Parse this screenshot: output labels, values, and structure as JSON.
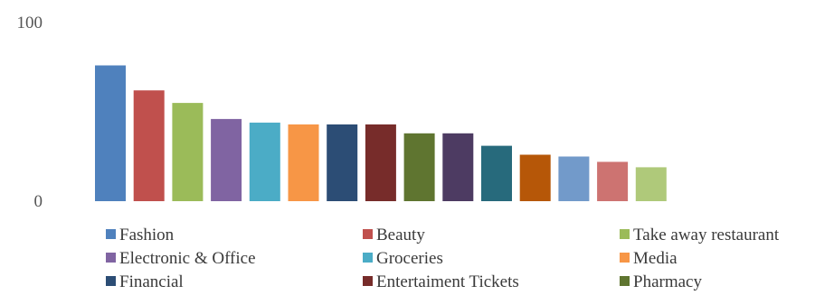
{
  "chart_data": {
    "type": "bar",
    "title": "",
    "xlabel": "",
    "ylabel": "",
    "ylim": [
      0,
      100
    ],
    "y_ticks": [
      "100",
      "0"
    ],
    "grid": false,
    "legend_position": "bottom",
    "series": [
      {
        "name": "Fashion",
        "value": 76,
        "color": "#4F81BD"
      },
      {
        "name": "Beauty",
        "value": 62,
        "color": "#C0504D"
      },
      {
        "name": "Take away restaurant",
        "value": 55,
        "color": "#9BBB59"
      },
      {
        "name": "Electronic & Office",
        "value": 46,
        "color": "#8064A2"
      },
      {
        "name": "Groceries",
        "value": 44,
        "color": "#4BACC6"
      },
      {
        "name": "Media",
        "value": 43,
        "color": "#F79646"
      },
      {
        "name": "Financial",
        "value": 43,
        "color": "#2C4D75"
      },
      {
        "name": "Entertaiment Tickets",
        "value": 43,
        "color": "#772C2A"
      },
      {
        "name": "Pharmacy",
        "value": 38,
        "color": "#5F7530"
      },
      {
        "name": "",
        "value": 38,
        "color": "#4D3B62"
      },
      {
        "name": "",
        "value": 31,
        "color": "#276A7C"
      },
      {
        "name": "",
        "value": 26,
        "color": "#B65708"
      },
      {
        "name": "",
        "value": 25,
        "color": "#729ACA"
      },
      {
        "name": "",
        "value": 22,
        "color": "#CD7371"
      },
      {
        "name": "",
        "value": 19,
        "color": "#AFC97A"
      }
    ]
  }
}
